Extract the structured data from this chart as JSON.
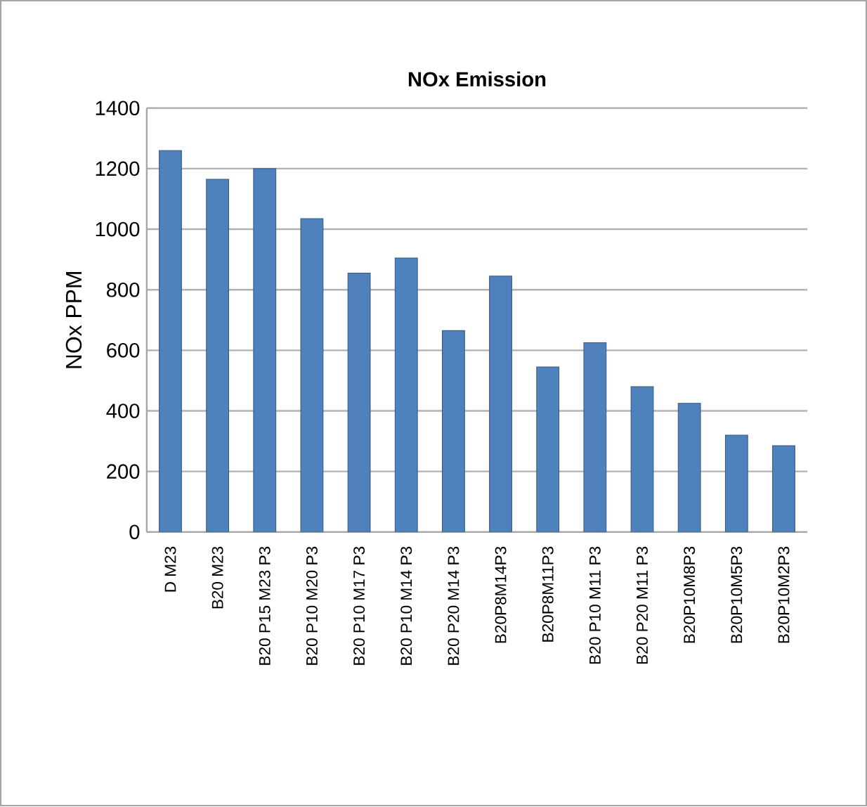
{
  "chart_data": {
    "type": "bar",
    "title": "**NOx Emission**",
    "ylabel": "NOx  PPM",
    "categories": [
      "D M23",
      "B20 M23",
      "B20 P15 M23 P3",
      "B20 P10 M20 P3",
      "B20 P10 M17 P3",
      "B20 P10 M14 P3",
      "B20 P20 M14 P3",
      "B20P8M14P3",
      "B20P8M11P3",
      "B20 P10 M11 P3",
      "B20 P20 M11 P3",
      "B20P10M8P3",
      "B20P10M5P3",
      "B20P10M2P3"
    ],
    "values": [
      1260,
      1165,
      1200,
      1035,
      855,
      905,
      665,
      845,
      545,
      625,
      480,
      425,
      320,
      285
    ],
    "color": "#4f81bd",
    "ylim": [
      0,
      1400
    ],
    "yticks": [
      0,
      200,
      400,
      600,
      800,
      1000,
      1200,
      1400
    ],
    "grid": "y"
  }
}
